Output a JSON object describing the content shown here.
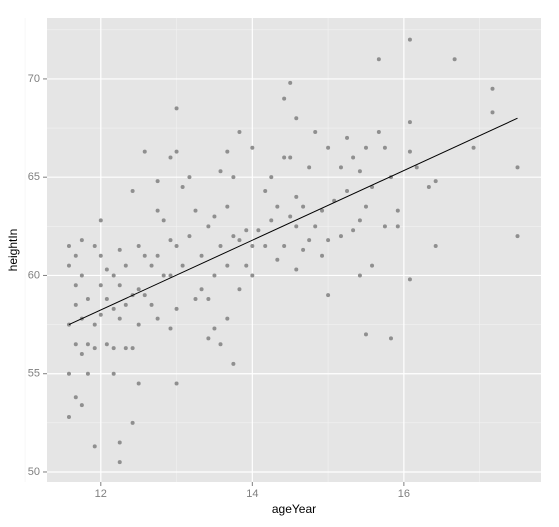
{
  "chart_data": {
    "type": "scatter",
    "x_label": "ageYear",
    "y_label": "heightIn",
    "xlim": [
      11.29,
      17.81
    ],
    "ylim": [
      49.49,
      73.1
    ],
    "xticks": [
      12,
      14,
      16
    ],
    "yticks": [
      50,
      55,
      60,
      65,
      70
    ],
    "xminorticks": [
      11,
      13,
      15,
      17
    ],
    "yminorticks": [
      52.5,
      57.5,
      62.5,
      67.5,
      72.5
    ],
    "grid": true,
    "color": "#8f8f8f",
    "x": [
      11.58,
      11.58,
      11.58,
      11.58,
      11.58,
      11.67,
      11.67,
      11.67,
      11.67,
      11.67,
      11.75,
      11.75,
      11.75,
      11.75,
      11.75,
      11.83,
      11.83,
      11.83,
      11.92,
      11.92,
      11.92,
      11.92,
      12,
      12,
      12,
      12,
      12.08,
      12.08,
      12.08,
      12.17,
      12.17,
      12.17,
      12.17,
      12.25,
      12.25,
      12.25,
      12.25,
      12.25,
      12.33,
      12.33,
      12.33,
      12.42,
      12.42,
      12.42,
      12.42,
      12.5,
      12.5,
      12.5,
      12.5,
      12.58,
      12.58,
      12.58,
      12.67,
      12.67,
      12.75,
      12.75,
      12.75,
      12.75,
      12.83,
      12.83,
      12.92,
      12.92,
      12.92,
      12.92,
      13,
      13,
      13,
      13,
      13,
      13.08,
      13.08,
      13.17,
      13.17,
      13.25,
      13.25,
      13.33,
      13.33,
      13.42,
      13.42,
      13.42,
      13.5,
      13.5,
      13.5,
      13.58,
      13.58,
      13.58,
      13.67,
      13.67,
      13.67,
      13.67,
      13.75,
      13.75,
      13.75,
      13.83,
      13.83,
      13.83,
      13.92,
      13.92,
      14,
      14,
      14,
      14.08,
      14.17,
      14.17,
      14.25,
      14.25,
      14.33,
      14.33,
      14.42,
      14.42,
      14.42,
      14.5,
      14.5,
      14.5,
      14.58,
      14.58,
      14.58,
      14.58,
      14.67,
      14.67,
      14.75,
      14.75,
      14.83,
      14.83,
      14.92,
      14.92,
      15,
      15,
      15,
      15.08,
      15.17,
      15.17,
      15.25,
      15.25,
      15.33,
      15.33,
      15.42,
      15.42,
      15.42,
      15.5,
      15.5,
      15.5,
      15.58,
      15.58,
      15.67,
      15.67,
      15.75,
      15.75,
      15.83,
      15.83,
      15.92,
      15.92,
      16.08,
      16.08,
      16.08,
      16.08,
      16.17,
      16.33,
      16.42,
      16.42,
      16.67,
      16.92,
      17.17,
      17.17,
      17.5,
      17.5
    ],
    "values": [
      52.8,
      55,
      57.5,
      60.5,
      61.5,
      53.8,
      56.5,
      58.5,
      59.5,
      61,
      53.4,
      56,
      57.8,
      60,
      61.8,
      55,
      56.5,
      58.8,
      51.3,
      56.3,
      57.5,
      61.5,
      58,
      59.5,
      61,
      62.8,
      56.5,
      58.8,
      60.3,
      55,
      56.3,
      58.3,
      60,
      50.5,
      51.5,
      57.8,
      59.5,
      61.3,
      56.3,
      58.5,
      60.5,
      52.5,
      56.3,
      59,
      64.3,
      54.5,
      57.5,
      59.3,
      61.5,
      59,
      61,
      66.3,
      58.5,
      60.5,
      57.8,
      61,
      63.3,
      64.8,
      60,
      62.8,
      57.3,
      60,
      61.8,
      66,
      54.5,
      58.3,
      61.5,
      66.3,
      68.5,
      60.5,
      64.5,
      62,
      65,
      58.8,
      63.3,
      59.3,
      61,
      56.8,
      58.8,
      62.5,
      57.3,
      60,
      63,
      56.5,
      61.5,
      65.3,
      57.8,
      60.5,
      63.5,
      66.3,
      55.5,
      62,
      65,
      59.3,
      61.8,
      67.3,
      60.5,
      62.3,
      60,
      61.5,
      66.5,
      62.3,
      61.5,
      64.3,
      62.8,
      65,
      60.8,
      63.5,
      61.5,
      66,
      69,
      63,
      66,
      69.8,
      60.3,
      62.5,
      64,
      68,
      61.3,
      63.5,
      61.8,
      65.5,
      62.5,
      67.3,
      61,
      63.3,
      59,
      61.8,
      66.5,
      63.8,
      62,
      65.5,
      64.3,
      67,
      62.3,
      66,
      60,
      62.8,
      65.3,
      57,
      63.5,
      66.5,
      60.5,
      64.5,
      67.3,
      71,
      62.5,
      66.5,
      56.8,
      65,
      63.3,
      62.5,
      59.8,
      66.3,
      67.8,
      72,
      65.5,
      64.5,
      61.5,
      64.8,
      71,
      66.5,
      68.3,
      69.5,
      62,
      65.5
    ],
    "trendline": {
      "x": [
        11.58,
        17.5
      ],
      "values": [
        57.5,
        68.0
      ],
      "color": "#000000"
    }
  }
}
